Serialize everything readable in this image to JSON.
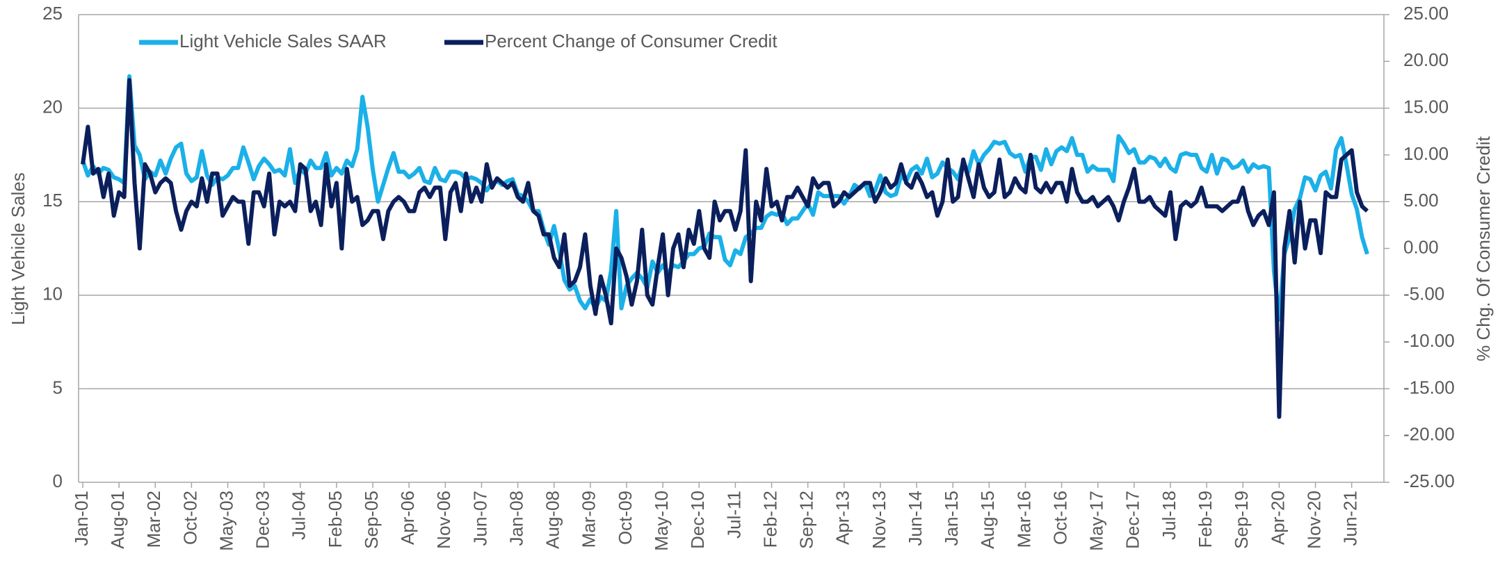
{
  "chart_data": {
    "type": "line",
    "y_label": "Light Vehicle Sales",
    "y2_label": "% Chg. Of Consumer Credit",
    "categories": [
      "Jan-01",
      null,
      null,
      null,
      null,
      null,
      null,
      "Aug-01",
      null,
      null,
      null,
      null,
      null,
      null,
      "Mar-02",
      null,
      null,
      null,
      null,
      null,
      null,
      "Oct-02",
      null,
      null,
      null,
      null,
      null,
      null,
      "May-03",
      null,
      null,
      null,
      null,
      null,
      null,
      "Dec-03",
      null,
      null,
      null,
      null,
      null,
      null,
      "Jul-04",
      null,
      null,
      null,
      null,
      null,
      null,
      "Feb-05",
      null,
      null,
      null,
      null,
      null,
      null,
      "Sep-05",
      null,
      null,
      null,
      null,
      null,
      null,
      "Apr-06",
      null,
      null,
      null,
      null,
      null,
      null,
      "Nov-06",
      null,
      null,
      null,
      null,
      null,
      null,
      "Jun-07",
      null,
      null,
      null,
      null,
      null,
      null,
      "Jan-08",
      null,
      null,
      null,
      null,
      null,
      null,
      "Aug-08",
      null,
      null,
      null,
      null,
      null,
      null,
      "Mar-09",
      null,
      null,
      null,
      null,
      null,
      null,
      "Oct-09",
      null,
      null,
      null,
      null,
      null,
      null,
      "May-10",
      null,
      null,
      null,
      null,
      null,
      null,
      "Dec-10",
      null,
      null,
      null,
      null,
      null,
      null,
      "Jul-11",
      null,
      null,
      null,
      null,
      null,
      null,
      "Feb-12",
      null,
      null,
      null,
      null,
      null,
      null,
      "Sep-12",
      null,
      null,
      null,
      null,
      null,
      null,
      "Apr-13",
      null,
      null,
      null,
      null,
      null,
      null,
      "Nov-13",
      null,
      null,
      null,
      null,
      null,
      null,
      "Jun-14",
      null,
      null,
      null,
      null,
      null,
      null,
      "Jan-15",
      null,
      null,
      null,
      null,
      null,
      null,
      "Aug-15",
      null,
      null,
      null,
      null,
      null,
      null,
      "Mar-16",
      null,
      null,
      null,
      null,
      null,
      null,
      "Oct-16",
      null,
      null,
      null,
      null,
      null,
      null,
      "May-17",
      null,
      null,
      null,
      null,
      null,
      null,
      "Dec-17",
      null,
      null,
      null,
      null,
      null,
      null,
      "Jul-18",
      null,
      null,
      null,
      null,
      null,
      null,
      "Feb-19",
      null,
      null,
      null,
      null,
      null,
      null,
      "Sep-19",
      null,
      null,
      null,
      null,
      null,
      null,
      "Apr-20",
      null,
      null,
      null,
      null,
      null,
      null,
      "Nov-20",
      null,
      null,
      null,
      null,
      null,
      null,
      "Jun-21",
      null,
      null,
      null
    ],
    "series": [
      {
        "name": "Light Vehicle Sales SAAR",
        "color": "#1bb0e8",
        "axis": "y",
        "values": [
          17.2,
          16.4,
          16.9,
          16.5,
          16.8,
          16.7,
          16.3,
          16.2,
          16.0,
          21.7,
          18.0,
          17.5,
          16.2,
          16.6,
          16.4,
          17.2,
          16.5,
          17.3,
          17.9,
          18.1,
          16.5,
          16.1,
          16.3,
          17.7,
          16.4,
          15.9,
          16.3,
          16.2,
          16.4,
          16.8,
          16.8,
          17.9,
          17.1,
          16.2,
          16.9,
          17.3,
          17.0,
          16.6,
          16.7,
          16.4,
          17.8,
          16.0,
          16.7,
          16.5,
          17.2,
          16.8,
          16.8,
          17.6,
          16.4,
          16.8,
          16.5,
          17.2,
          16.9,
          17.8,
          20.6,
          19.0,
          16.7,
          15.0,
          15.9,
          16.8,
          17.6,
          16.6,
          16.6,
          16.3,
          16.5,
          16.8,
          16.1,
          16.0,
          16.8,
          16.2,
          16.1,
          16.6,
          16.6,
          16.5,
          16.2,
          16.3,
          16.2,
          16.0,
          15.6,
          16.0,
          16.1,
          15.9,
          16.1,
          16.2,
          15.4,
          15.3,
          15.0,
          14.5,
          14.5,
          13.5,
          12.7,
          13.7,
          12.4,
          10.8,
          10.3,
          10.5,
          9.7,
          9.3,
          9.8,
          9.3,
          9.9,
          9.7,
          11.3,
          14.5,
          9.3,
          10.5,
          10.9,
          11.2,
          10.9,
          10.4,
          11.8,
          11.2,
          11.6,
          11.2,
          11.6,
          11.5,
          11.8,
          12.2,
          12.2,
          12.5,
          12.6,
          13.3,
          13.1,
          13.1,
          11.9,
          11.6,
          12.4,
          12.2,
          13.1,
          13.3,
          13.6,
          13.6,
          14.2,
          14.4,
          14.3,
          14.4,
          13.8,
          14.1,
          14.1,
          14.5,
          14.9,
          14.3,
          15.5,
          15.3,
          15.3,
          15.3,
          15.3,
          14.9,
          15.3,
          15.9,
          15.7,
          16.0,
          15.3,
          15.6,
          16.4,
          15.5,
          15.3,
          15.4,
          16.4,
          16.1,
          16.7,
          16.9,
          16.5,
          17.3,
          16.3,
          16.5,
          17.1,
          16.8,
          16.6,
          16.2,
          17.1,
          16.6,
          17.7,
          17.0,
          17.5,
          17.8,
          18.2,
          18.1,
          18.2,
          17.6,
          17.4,
          17.5,
          16.6,
          17.4,
          17.4,
          16.7,
          17.8,
          17.0,
          17.7,
          17.9,
          17.7,
          18.4,
          17.5,
          17.5,
          16.6,
          16.9,
          16.7,
          16.7,
          16.7,
          16.1,
          18.5,
          18.1,
          17.6,
          17.8,
          17.1,
          17.1,
          17.4,
          17.3,
          16.9,
          17.3,
          16.8,
          16.6,
          17.5,
          17.6,
          17.5,
          17.5,
          16.8,
          16.6,
          17.5,
          16.5,
          17.3,
          17.2,
          16.8,
          16.9,
          17.2,
          16.6,
          17.0,
          16.8,
          16.9,
          16.8,
          11.3,
          8.7,
          12.2,
          13.1,
          14.6,
          15.2,
          16.3,
          16.2,
          15.6,
          16.4,
          16.6,
          15.7,
          17.8,
          18.4,
          17.0,
          15.4,
          14.6,
          13.1,
          12.2
        ]
      },
      {
        "name": "Percent Change of Consumer Credit",
        "color": "#0b1f5c",
        "axis": "y2",
        "values": [
          9,
          13,
          8,
          8.5,
          5.5,
          8,
          3.5,
          6,
          5.5,
          18,
          7,
          0,
          9,
          8,
          6,
          7,
          7.5,
          7,
          4,
          2,
          4,
          5,
          4.5,
          7.5,
          5,
          8,
          8,
          3.5,
          4.5,
          5.5,
          5,
          5,
          0.5,
          6,
          6,
          4.5,
          8,
          1.5,
          5,
          4.5,
          5,
          4,
          9,
          8.5,
          4,
          5,
          2.5,
          9,
          4.5,
          7,
          0,
          8.5,
          5,
          5.5,
          2.5,
          3,
          4,
          4,
          1,
          4,
          5,
          5.5,
          5,
          4,
          4,
          6,
          6.5,
          5.5,
          6.5,
          6.5,
          1,
          6,
          7,
          4,
          8,
          5,
          6.5,
          5,
          9,
          6.5,
          7.5,
          7,
          6.5,
          7,
          5.5,
          5,
          7,
          4,
          3.5,
          1.5,
          1.5,
          -1,
          -2,
          1.5,
          -4,
          -3.5,
          -2,
          1.5,
          -4,
          -7,
          -3,
          -5,
          -8,
          0,
          -1,
          -3,
          -6,
          -3.5,
          2,
          -5,
          -6,
          -2,
          1.5,
          -5,
          0,
          1.5,
          -2,
          2,
          0.5,
          4,
          0,
          -1,
          5,
          3,
          4,
          4,
          2,
          4,
          10.5,
          -3.5,
          5,
          3,
          8.5,
          4.5,
          5,
          3,
          5.5,
          5.5,
          6.5,
          5.5,
          4.5,
          7.5,
          6.5,
          7,
          7,
          4.5,
          5,
          6,
          5.5,
          6,
          6.5,
          7,
          7,
          5,
          6,
          7.5,
          6.5,
          7,
          9,
          7,
          6.5,
          8,
          7,
          5.5,
          6,
          3.5,
          5,
          9.5,
          5,
          5.5,
          9.5,
          7.5,
          5.5,
          9,
          6.5,
          5.5,
          6,
          9.5,
          5.5,
          6,
          7.5,
          6.5,
          6,
          10,
          6.5,
          6,
          7,
          6,
          7,
          7,
          5,
          8.5,
          6,
          5,
          5,
          5.5,
          4.5,
          5,
          5.5,
          4.5,
          3,
          5,
          6.5,
          8.5,
          5,
          5,
          5.5,
          4.5,
          4,
          3.5,
          6,
          1,
          4.5,
          5,
          4.5,
          5,
          6.5,
          4.5,
          4.5,
          4.5,
          4,
          4.5,
          5,
          5,
          6.5,
          4,
          2.5,
          3.5,
          4,
          2.5,
          6,
          -18,
          0,
          4,
          -1.5,
          5,
          0,
          3,
          3,
          -0.5,
          6,
          5.5,
          5.5,
          9.5,
          10,
          10.5,
          6,
          4.5,
          4
        ]
      }
    ],
    "ylim": [
      0,
      25
    ],
    "yticks": [
      0,
      5,
      10,
      15,
      20,
      25
    ],
    "y2lim": [
      -25,
      25
    ],
    "y2ticks": [
      {
        "value": -25,
        "label": "-25.00"
      },
      {
        "value": -20,
        "label": "-20.00"
      },
      {
        "value": -15,
        "label": "-15.00"
      },
      {
        "value": -10,
        "label": "-10.00"
      },
      {
        "value": -5,
        "label": "-5.00"
      },
      {
        "value": 0,
        "label": "0.00"
      },
      {
        "value": 5,
        "label": "5.00"
      },
      {
        "value": 10,
        "label": "10.00"
      },
      {
        "value": 15,
        "label": "15.00"
      },
      {
        "value": 20,
        "label": "20.00"
      },
      {
        "value": 25,
        "label": "25.00"
      }
    ],
    "grid": true,
    "legend": "top-left"
  }
}
